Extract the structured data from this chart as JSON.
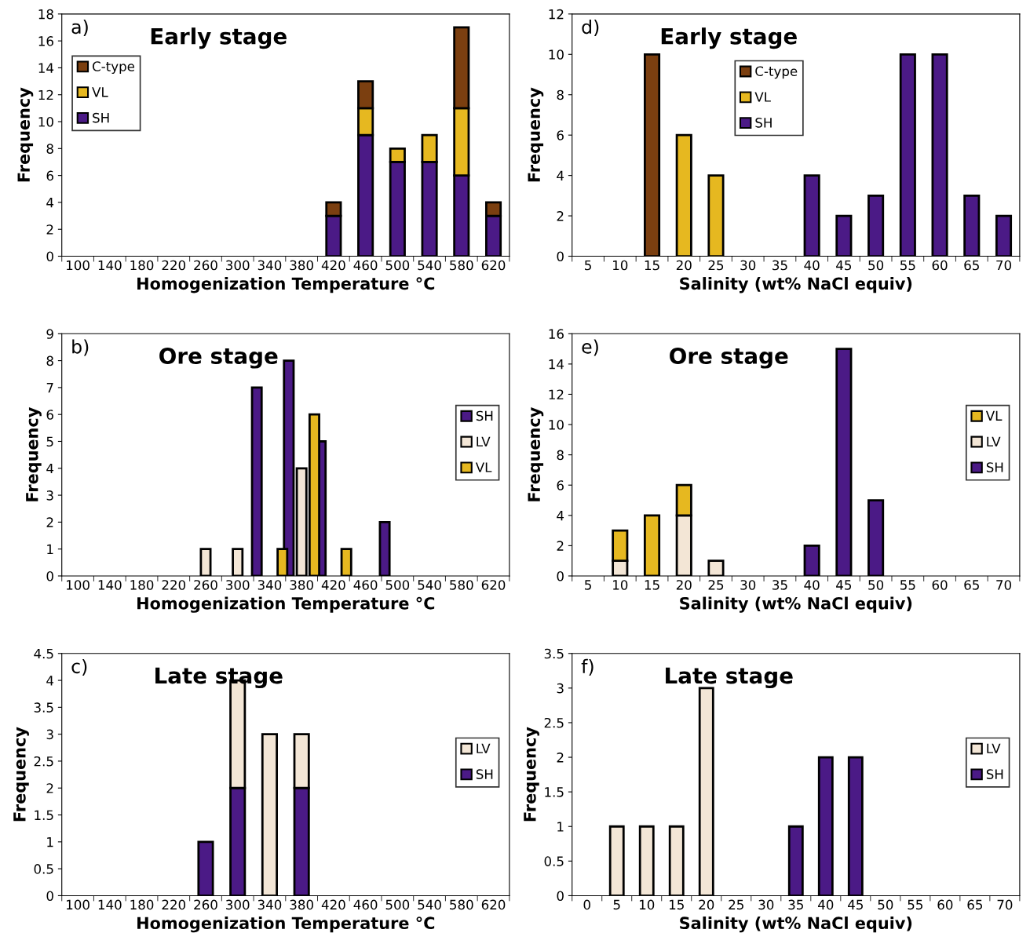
{
  "chart_data": [
    {
      "type": "bar",
      "title": "Early stage",
      "annotations": [
        "a)"
      ],
      "xlabel": "Homogenization Temperature °C",
      "ylabel": "Frequency",
      "stacked": true,
      "legend": "top left",
      "grid": false,
      "ylim": [
        0,
        18
      ],
      "yticks": [
        0,
        2,
        4,
        6,
        8,
        10,
        12,
        14,
        16,
        18
      ],
      "categories": [
        "100",
        "140",
        "180",
        "220",
        "260",
        "300",
        "340",
        "380",
        "420",
        "460",
        "500",
        "540",
        "580",
        "620"
      ],
      "series": [
        {
          "name": "SH",
          "color": "#4b1a86",
          "values": [
            null,
            null,
            null,
            null,
            null,
            null,
            null,
            null,
            3,
            9,
            7,
            7,
            6,
            3
          ]
        },
        {
          "name": "VL",
          "color": "#e6b820",
          "values": [
            null,
            null,
            null,
            null,
            null,
            null,
            null,
            null,
            null,
            2,
            1,
            2,
            5,
            null
          ]
        },
        {
          "name": "C-type",
          "color": "#7b3f10",
          "values": [
            null,
            null,
            null,
            null,
            null,
            null,
            null,
            null,
            1,
            2,
            null,
            null,
            6,
            1
          ]
        }
      ]
    },
    {
      "type": "bar",
      "title": "Early stage",
      "annotations": [
        "d)"
      ],
      "xlabel": "Salinity (wt% NaCl equiv)",
      "ylabel": "Frequency",
      "stacked": true,
      "legend": "top",
      "grid": false,
      "ylim": [
        0,
        12
      ],
      "yticks": [
        0,
        2,
        4,
        6,
        8,
        10,
        12
      ],
      "categories": [
        "5",
        "10",
        "15",
        "20",
        "25",
        "30",
        "35",
        "40",
        "45",
        "50",
        "55",
        "60",
        "65",
        "70"
      ],
      "series": [
        {
          "name": "SH",
          "color": "#4b1a86",
          "values": [
            null,
            null,
            null,
            null,
            null,
            null,
            null,
            4,
            2,
            3,
            10,
            10,
            3,
            2
          ]
        },
        {
          "name": "VL",
          "color": "#e6b820",
          "values": [
            null,
            null,
            null,
            6,
            4,
            null,
            null,
            null,
            null,
            null,
            null,
            null,
            null,
            null
          ]
        },
        {
          "name": "C-type",
          "color": "#7b3f10",
          "values": [
            null,
            null,
            10,
            null,
            null,
            null,
            null,
            null,
            null,
            null,
            null,
            null,
            null,
            null
          ]
        }
      ]
    },
    {
      "type": "bar",
      "title": "Ore stage",
      "annotations": [
        "b)"
      ],
      "xlabel": "Homogenization Temperature °C",
      "ylabel": "Frequency",
      "stacked": false,
      "legend": "right",
      "grid": false,
      "ylim": [
        0,
        9
      ],
      "yticks": [
        0,
        1,
        2,
        3,
        4,
        5,
        6,
        7,
        8,
        9
      ],
      "categories": [
        "100",
        "140",
        "180",
        "220",
        "260",
        "300",
        "340",
        "380",
        "420",
        "460",
        "500",
        "540",
        "580",
        "620"
      ],
      "series": [
        {
          "name": "SH",
          "color": "#4b1a86",
          "values": [
            null,
            null,
            null,
            null,
            null,
            null,
            7,
            8,
            5,
            null,
            2,
            null,
            null,
            null
          ]
        },
        {
          "name": "LV",
          "color": "#f3e6d6",
          "values": [
            null,
            null,
            null,
            null,
            1,
            1,
            null,
            4,
            null,
            null,
            null,
            null,
            null,
            null
          ]
        },
        {
          "name": "VL",
          "color": "#e6b820",
          "values": [
            null,
            null,
            null,
            null,
            null,
            null,
            1,
            6,
            1,
            null,
            null,
            null,
            null,
            null
          ]
        }
      ]
    },
    {
      "type": "bar",
      "title": "Ore stage",
      "annotations": [
        "e)"
      ],
      "xlabel": "Salinity (wt% NaCl equiv)",
      "ylabel": "Frequency",
      "stacked": true,
      "legend": "right",
      "grid": false,
      "ylim": [
        0,
        16
      ],
      "yticks": [
        0,
        2,
        4,
        6,
        8,
        10,
        12,
        14,
        16
      ],
      "categories": [
        "5",
        "10",
        "15",
        "20",
        "25",
        "30",
        "35",
        "40",
        "45",
        "50",
        "55",
        "60",
        "65",
        "70"
      ],
      "series": [
        {
          "name": "SH",
          "color": "#4b1a86",
          "values": [
            null,
            null,
            null,
            null,
            null,
            null,
            null,
            2,
            15,
            5,
            null,
            null,
            null,
            null
          ]
        },
        {
          "name": "LV",
          "color": "#f3e6d6",
          "values": [
            null,
            1,
            null,
            4,
            1,
            null,
            null,
            null,
            null,
            null,
            null,
            null,
            null,
            null
          ]
        },
        {
          "name": "VL",
          "color": "#e6b820",
          "values": [
            null,
            2,
            4,
            2,
            null,
            null,
            null,
            null,
            null,
            null,
            null,
            null,
            null,
            null
          ]
        }
      ]
    },
    {
      "type": "bar",
      "title": "Late stage",
      "annotations": [
        "c)"
      ],
      "xlabel": "Homogenization Temperature °C",
      "ylabel": "Frequency",
      "stacked": true,
      "legend": "right",
      "grid": false,
      "ylim": [
        0,
        4.5
      ],
      "yticks": [
        0,
        0.5,
        1,
        1.5,
        2,
        2.5,
        3,
        3.5,
        4,
        4.5
      ],
      "categories": [
        "100",
        "140",
        "180",
        "220",
        "260",
        "300",
        "340",
        "380",
        "420",
        "460",
        "500",
        "540",
        "580",
        "620"
      ],
      "series": [
        {
          "name": "SH",
          "color": "#4b1a86",
          "values": [
            null,
            null,
            null,
            null,
            1,
            2,
            null,
            2,
            null,
            null,
            null,
            null,
            null,
            null
          ]
        },
        {
          "name": "LV",
          "color": "#f3e6d6",
          "values": [
            null,
            null,
            null,
            null,
            null,
            2,
            3,
            1,
            null,
            null,
            null,
            null,
            null,
            null
          ]
        }
      ]
    },
    {
      "type": "bar",
      "title": "Late stage",
      "annotations": [
        "f)"
      ],
      "xlabel": "Salinity (wt% NaCl equiv)",
      "ylabel": "Frequency",
      "stacked": true,
      "legend": "right",
      "grid": false,
      "ylim": [
        0,
        3.5
      ],
      "yticks": [
        0,
        0.5,
        1,
        1.5,
        2,
        2.5,
        3,
        3.5
      ],
      "categories": [
        "0",
        "5",
        "10",
        "15",
        "20",
        "25",
        "30",
        "35",
        "40",
        "45",
        "50",
        "55",
        "60",
        "65",
        "70"
      ],
      "series": [
        {
          "name": "SH",
          "color": "#4b1a86",
          "values": [
            null,
            null,
            null,
            null,
            null,
            null,
            null,
            1,
            2,
            2,
            null,
            null,
            null,
            null,
            null
          ]
        },
        {
          "name": "LV",
          "color": "#f3e6d6",
          "values": [
            null,
            1,
            1,
            1,
            3,
            null,
            null,
            null,
            null,
            null,
            null,
            null,
            null,
            null,
            null
          ]
        }
      ]
    }
  ]
}
